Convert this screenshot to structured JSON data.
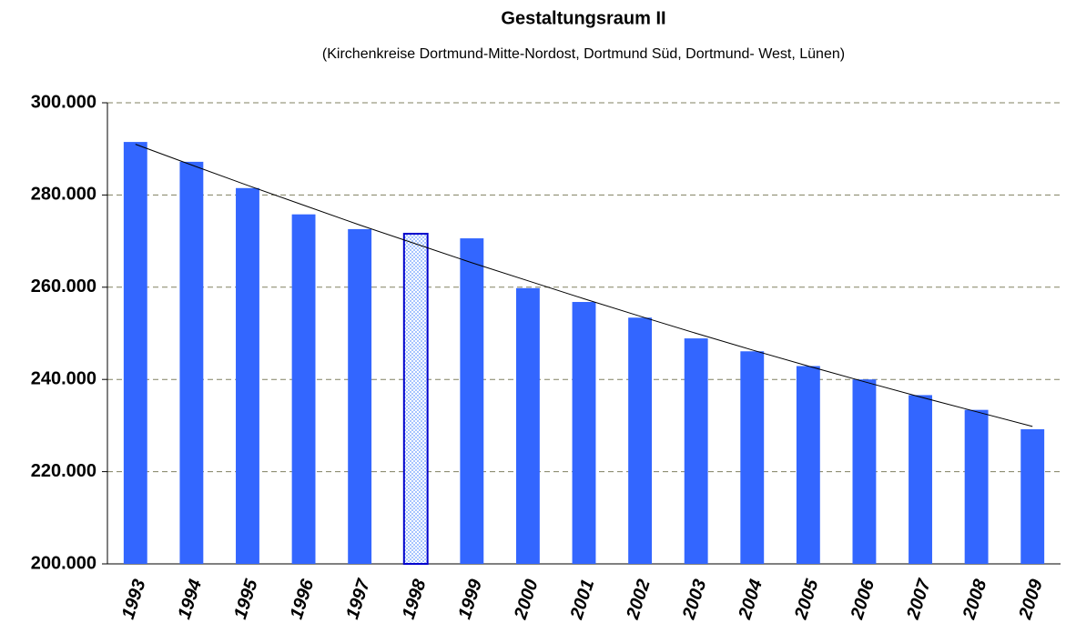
{
  "chart_data": {
    "type": "bar",
    "title": "Gestaltungsraum II",
    "subtitle": "(Kirchenkreise Dortmund-Mitte-Nordost, Dortmund Süd, Dortmund- West, Lünen)",
    "categories": [
      "1993",
      "1994",
      "1995",
      "1996",
      "1997",
      "1998",
      "1999",
      "2000",
      "2001",
      "2002",
      "2003",
      "2004",
      "2005",
      "2006",
      "2007",
      "2008",
      "2009"
    ],
    "values": [
      291500,
      287200,
      281500,
      275800,
      272600,
      271600,
      270600,
      259800,
      256800,
      253400,
      248900,
      246100,
      242900,
      240000,
      236600,
      233400,
      229200
    ],
    "color": "#3366ff",
    "highlight_index": 5,
    "highlight_color": "#0000cc",
    "trendline": [
      291000,
      286500,
      282100,
      277800,
      273500,
      269400,
      265300,
      261400,
      257500,
      253700,
      250000,
      246400,
      242900,
      239500,
      236200,
      233000,
      229800
    ],
    "ylim": [
      200000,
      300000
    ],
    "yticks": [
      {
        "value": 200000,
        "label": "200.000"
      },
      {
        "value": 220000,
        "label": "220.000"
      },
      {
        "value": 240000,
        "label": "240.000"
      },
      {
        "value": 260000,
        "label": "260.000"
      },
      {
        "value": 280000,
        "label": "280.000"
      },
      {
        "value": 300000,
        "label": "300.000"
      }
    ],
    "grid": true
  }
}
